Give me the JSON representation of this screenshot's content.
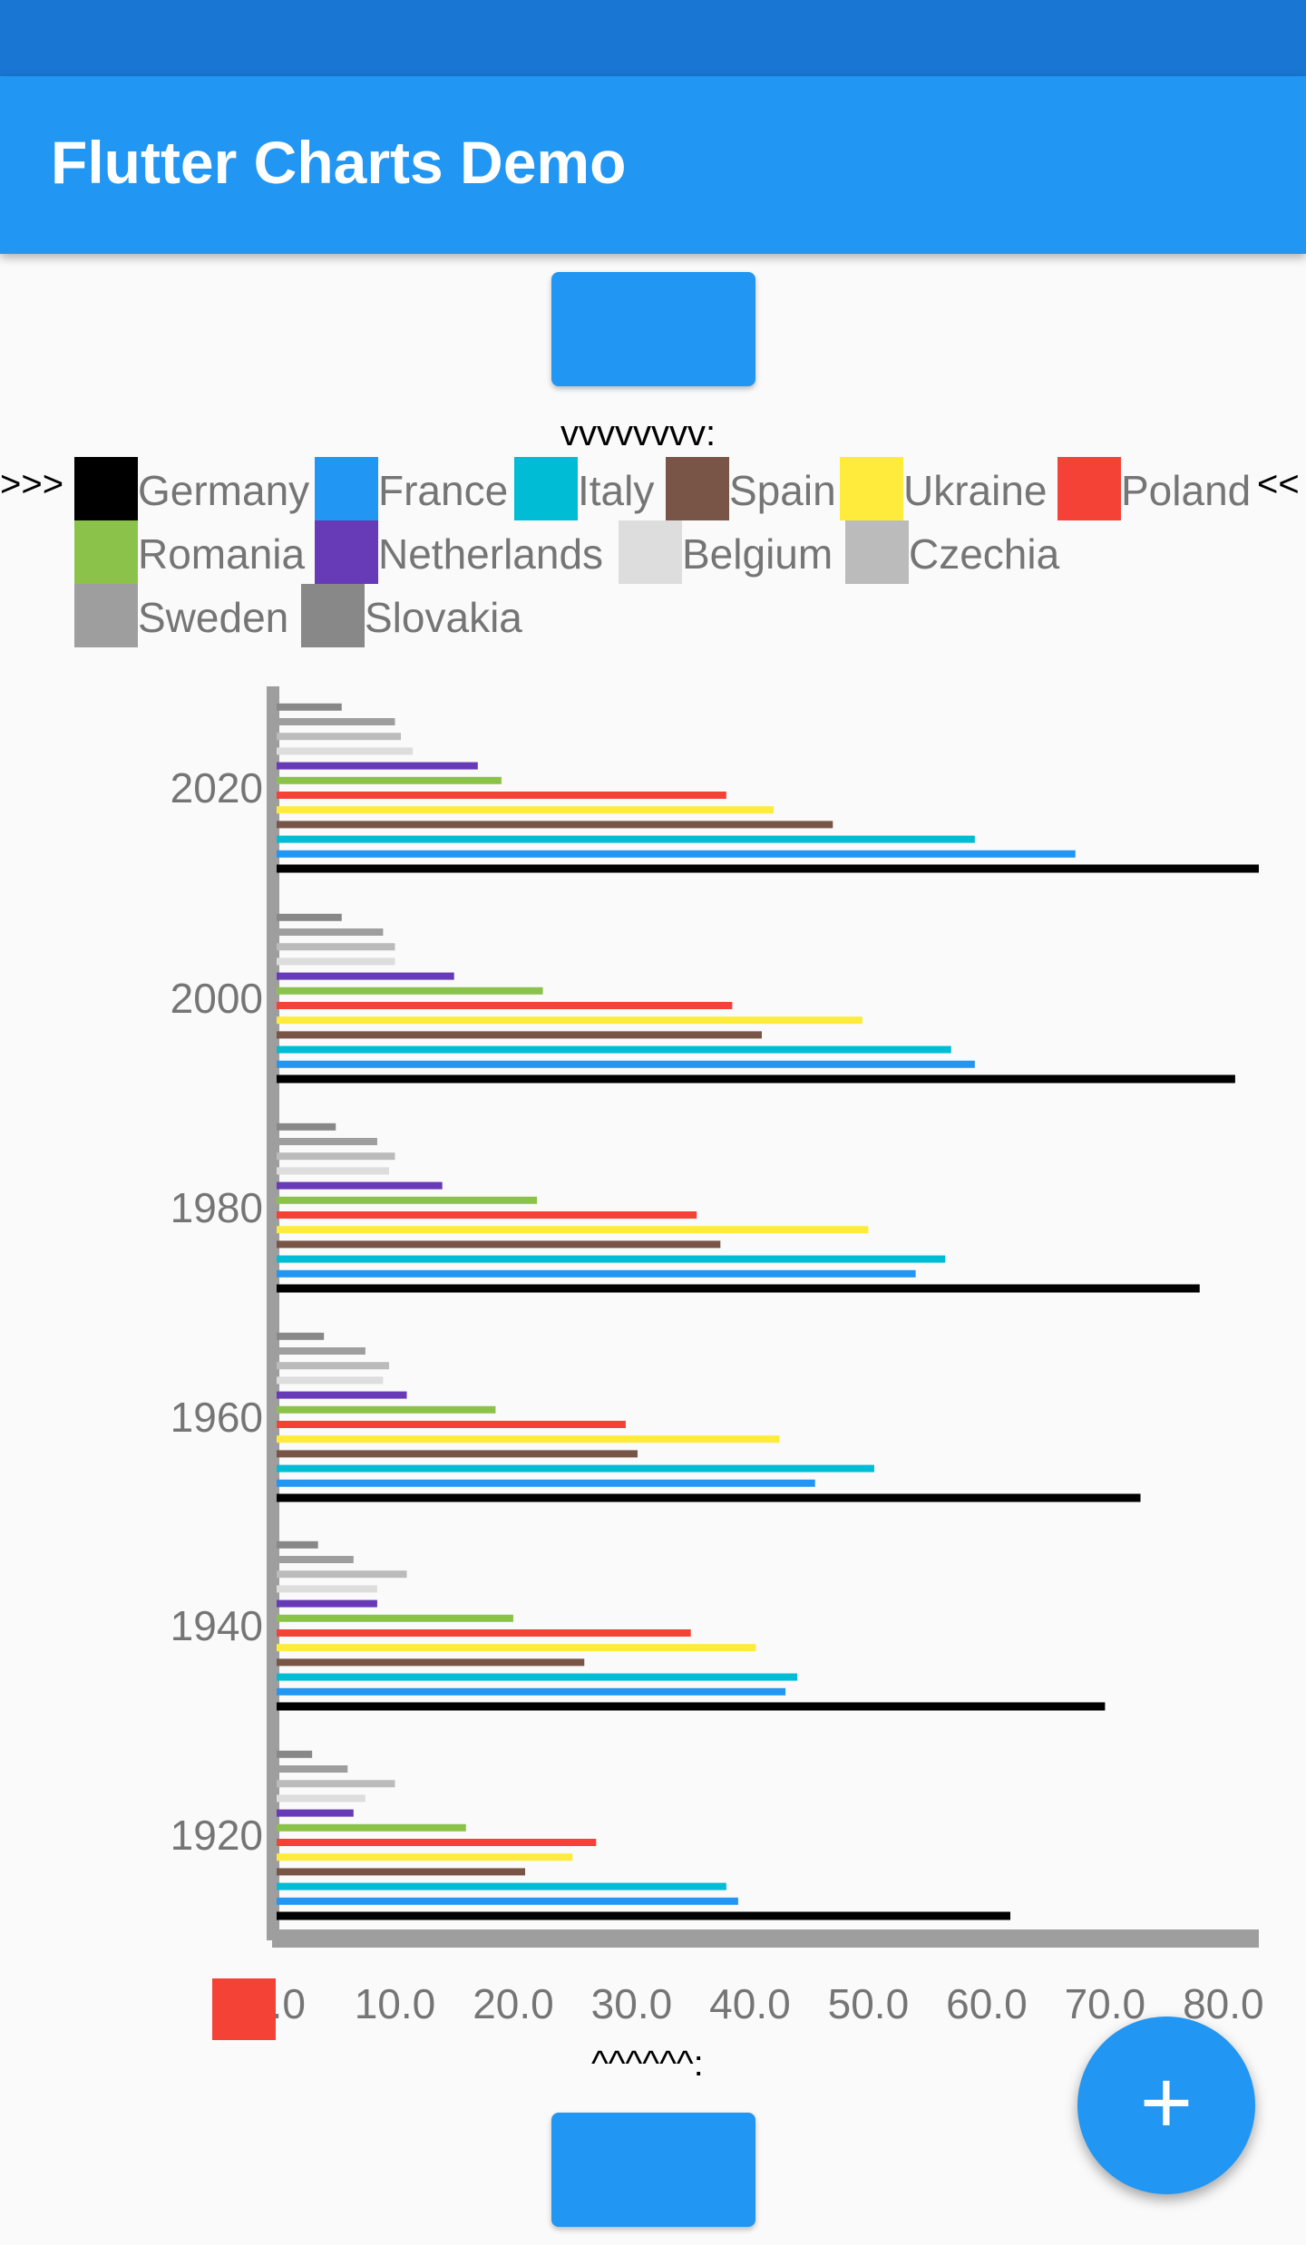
{
  "app_bar": {
    "title": "Flutter Charts Demo"
  },
  "markers": {
    "top": "vvvvvvvv:",
    "left": ">>>",
    "right": "<<",
    "bottom": "^^^^^^:"
  },
  "fab": {
    "icon": "plus-icon",
    "label": "+"
  },
  "colors": {
    "app_bar": "#2196f3",
    "status_bar": "#1976d2",
    "axis": "#9e9e9e",
    "tick_label": "#757575"
  },
  "chart_data": {
    "type": "bar",
    "orientation": "horizontal",
    "categories": [
      "1920",
      "1940",
      "1960",
      "1980",
      "2000",
      "2020"
    ],
    "series": [
      {
        "name": "Germany",
        "color": "#000000",
        "values": [
          62,
          70,
          73,
          78,
          81,
          83
        ]
      },
      {
        "name": "France",
        "color": "#2196f3",
        "values": [
          39,
          43,
          45.5,
          54,
          59,
          67.5
        ]
      },
      {
        "name": "Italy",
        "color": "#00bcd4",
        "values": [
          38,
          44,
          50.5,
          56.5,
          57,
          59
        ]
      },
      {
        "name": "Spain",
        "color": "#795548",
        "values": [
          21,
          26,
          30.5,
          37.5,
          41,
          47
        ]
      },
      {
        "name": "Ukraine",
        "color": "#ffeb3b",
        "values": [
          25,
          40.5,
          42.5,
          50,
          49.5,
          42
        ]
      },
      {
        "name": "Poland",
        "color": "#f44336",
        "values": [
          27,
          35,
          29.5,
          35.5,
          38.5,
          38
        ]
      },
      {
        "name": "Romania",
        "color": "#8bc34a",
        "values": [
          16,
          20,
          18.5,
          22,
          22.5,
          19
        ]
      },
      {
        "name": "Netherlands",
        "color": "#673ab7",
        "values": [
          6.5,
          8.5,
          11,
          14,
          15,
          17
        ]
      },
      {
        "name": "Belgium",
        "color": "#dddddd",
        "values": [
          7.5,
          8.5,
          9,
          9.5,
          10,
          11.5
        ]
      },
      {
        "name": "Czechia",
        "color": "#bbbbbb",
        "values": [
          10,
          11,
          9.5,
          10,
          10,
          10.5
        ]
      },
      {
        "name": "Sweden",
        "color": "#9e9e9e",
        "values": [
          6,
          6.5,
          7.5,
          8.5,
          9,
          10
        ]
      },
      {
        "name": "Slovakia",
        "color": "#888888",
        "values": [
          3,
          3.5,
          4,
          5,
          5.5,
          5.5
        ]
      }
    ],
    "x_ticks": [
      "0.0",
      "10.0",
      "20.0",
      "30.0",
      "40.0",
      "50.0",
      "60.0",
      "70.0",
      "80.0"
    ],
    "xlim": [
      0,
      83
    ],
    "legend": "top",
    "grid": false
  }
}
